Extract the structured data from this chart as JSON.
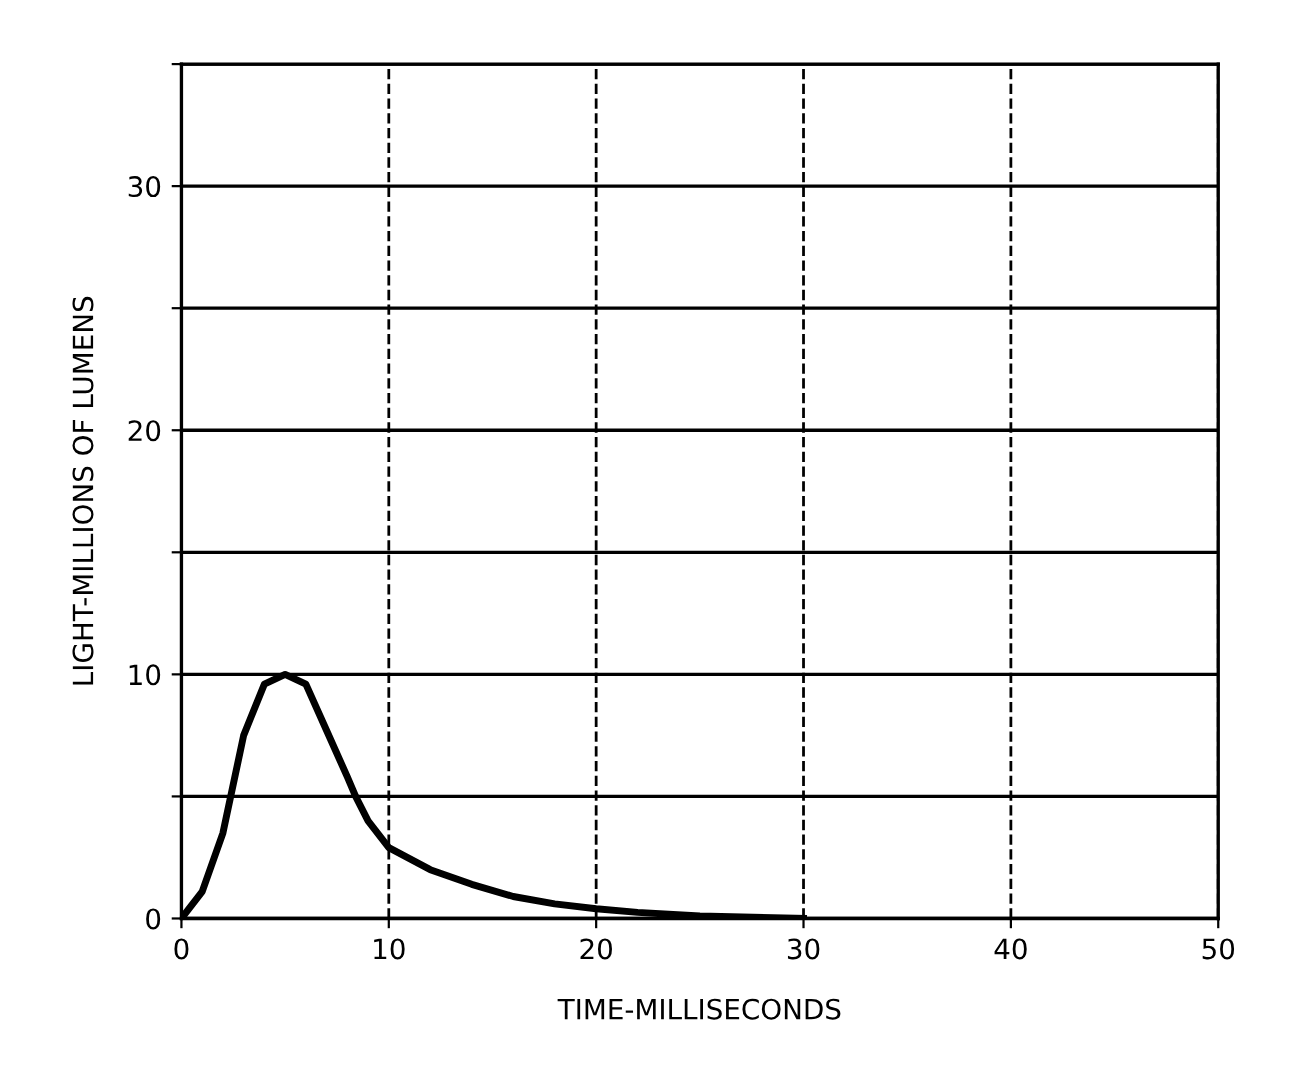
{
  "chart_data": {
    "type": "line",
    "xlabel": "TIME-MILLISECONDS",
    "ylabel": "LIGHT-MILLIONS OF LUMENS",
    "x": [
      0,
      1,
      2,
      3,
      4,
      5,
      6,
      7,
      8,
      8.4,
      9,
      10,
      12,
      14,
      16,
      18,
      20,
      22,
      25,
      30
    ],
    "series": [
      {
        "color": "#000000",
        "values": [
          0,
          1.1,
          3.5,
          7.5,
          9.6,
          10,
          9.6,
          7.7,
          5.8,
          5,
          4.0,
          2.9,
          2.0,
          1.4,
          0.9,
          0.6,
          0.4,
          0.25,
          0.1,
          0
        ]
      }
    ],
    "xlim": [
      0,
      50
    ],
    "xticks": [
      0,
      10,
      20,
      30,
      40,
      50
    ],
    "ylim": [
      0,
      35
    ],
    "yticks": [
      0,
      {
        "value": 5,
        "label": null
      },
      10,
      {
        "value": 15,
        "label": null
      },
      20,
      {
        "value": 25,
        "label": null
      },
      30,
      {
        "value": 35,
        "label": null
      }
    ],
    "grid": true,
    "marker": "none",
    "line_style": "solid"
  }
}
